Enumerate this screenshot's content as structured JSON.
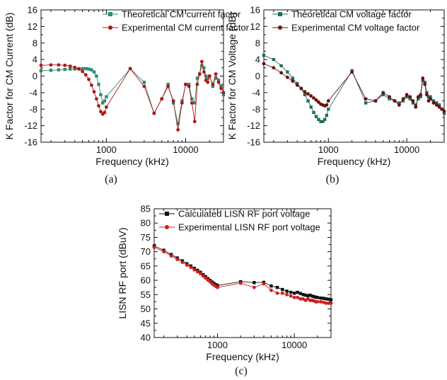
{
  "chart_data": [
    {
      "type": "line",
      "caption": "(a)",
      "xlabel": "Frequency (kHz)",
      "ylabel": "K Factor for CM Current (dB)",
      "xscale": "log",
      "xlim": [
        150,
        30000
      ],
      "ylim": [
        -16,
        16
      ],
      "xticks": [
        1000,
        10000
      ],
      "xtick_labels": [
        "1000",
        "10000"
      ],
      "yticks": [
        -16,
        -12,
        -8,
        -4,
        0,
        4,
        8,
        12,
        16
      ],
      "ytick_labels": [
        "-16",
        "-12",
        "-8",
        "-4",
        "0",
        "4",
        "8",
        "12",
        "16"
      ],
      "grid": false,
      "legend_position": "top-right",
      "series": [
        {
          "name": "Theoretical CM current factor",
          "color": "#2e8b6e",
          "marker": "square",
          "x": [
            150,
            200,
            250,
            300,
            350,
            400,
            450,
            500,
            550,
            600,
            650,
            700,
            750,
            800,
            850,
            900,
            950,
            1000,
            2000,
            3000,
            4000,
            5000,
            6000,
            7000,
            8000,
            9000,
            10000,
            11000,
            12000,
            13000,
            14000,
            15000,
            16000,
            17000,
            18000,
            19000,
            20000,
            22000,
            24000,
            26000,
            28000,
            30000
          ],
          "y": [
            1.3,
            1.4,
            1.5,
            1.6,
            1.7,
            1.7,
            1.8,
            1.8,
            1.8,
            1.7,
            1.5,
            1.0,
            0.0,
            -2.0,
            -4.5,
            -6.5,
            -6.0,
            -5.0,
            1.8,
            -1.5,
            -9.0,
            -5.5,
            -2.0,
            -6.5,
            -11.5,
            -6.0,
            -2.0,
            -2.0,
            -5.5,
            -6.5,
            -0.5,
            0.5,
            2.5,
            2.0,
            0.0,
            -0.5,
            0.0,
            -2.5,
            -0.5,
            -1.0,
            -2.5,
            -4.5
          ]
        },
        {
          "name": "Experimental CM current factor",
          "color": "#b01515",
          "marker": "circle",
          "x": [
            150,
            200,
            250,
            300,
            350,
            400,
            450,
            500,
            550,
            600,
            650,
            700,
            750,
            800,
            850,
            900,
            950,
            1000,
            2000,
            3000,
            4000,
            5000,
            6000,
            7000,
            8000,
            9000,
            10000,
            11000,
            12000,
            13000,
            14000,
            15000,
            16000,
            17000,
            18000,
            19000,
            20000,
            22000,
            24000,
            26000,
            28000,
            30000
          ],
          "y": [
            2.6,
            2.7,
            2.7,
            2.6,
            2.4,
            2.1,
            1.7,
            1.1,
            0.3,
            -0.8,
            -2.2,
            -3.8,
            -5.5,
            -7.2,
            -8.6,
            -9.2,
            -8.8,
            -7.5,
            1.8,
            -2.5,
            -9.0,
            -5.5,
            -2.5,
            -6.0,
            -13.0,
            -6.5,
            -2.0,
            -2.5,
            -6.5,
            -11.0,
            -2.0,
            0.5,
            3.5,
            1.0,
            -1.0,
            -1.5,
            0.0,
            -2.0,
            0.5,
            -1.5,
            -3.0,
            -4.0
          ]
        }
      ]
    },
    {
      "type": "line",
      "caption": "(b)",
      "xlabel": "Frequency (kHz)",
      "ylabel": "K Factor for CM Voltage (dB)",
      "xscale": "log",
      "xlim": [
        150,
        30000
      ],
      "ylim": [
        -16,
        16
      ],
      "xticks": [
        1000,
        10000
      ],
      "xtick_labels": [
        "1000",
        "10000"
      ],
      "yticks": [
        -16,
        -12,
        -8,
        -4,
        0,
        4,
        8,
        12,
        16
      ],
      "ytick_labels": [
        "-16",
        "-12",
        "-8",
        "-4",
        "0",
        "4",
        "8",
        "12",
        "16"
      ],
      "grid": false,
      "legend_position": "top-right",
      "series": [
        {
          "name": "Theoretical CM voltage factor",
          "color": "#1f6f5c",
          "marker": "square",
          "x": [
            150,
            200,
            250,
            300,
            350,
            400,
            450,
            500,
            550,
            600,
            650,
            700,
            750,
            800,
            850,
            900,
            950,
            1000,
            2000,
            3000,
            4000,
            5000,
            6000,
            7000,
            8000,
            9000,
            10000,
            11000,
            12000,
            13000,
            14000,
            15000,
            16000,
            17000,
            18000,
            19000,
            20000,
            22000,
            24000,
            26000,
            28000,
            30000
          ],
          "y": [
            5.0,
            4.0,
            2.5,
            1.0,
            -0.5,
            -1.8,
            -3.0,
            -4.5,
            -6.0,
            -7.5,
            -8.8,
            -9.8,
            -10.5,
            -11.0,
            -11.0,
            -10.5,
            -9.5,
            -8.0,
            1.3,
            -6.5,
            -6.0,
            -4.5,
            -5.5,
            -6.0,
            -6.5,
            -6.0,
            -5.0,
            -5.5,
            -6.5,
            -7.0,
            -5.5,
            -5.0,
            -1.0,
            -1.5,
            -4.0,
            -5.0,
            -5.0,
            -6.0,
            -6.5,
            -7.0,
            -8.0,
            -9.0
          ]
        },
        {
          "name": "Experimental CM voltage factor",
          "color": "#6b1010",
          "marker": "circle",
          "x": [
            150,
            200,
            250,
            300,
            350,
            400,
            450,
            500,
            550,
            600,
            650,
            700,
            750,
            800,
            850,
            900,
            950,
            1000,
            2000,
            3000,
            4000,
            5000,
            6000,
            7000,
            8000,
            9000,
            10000,
            11000,
            12000,
            13000,
            14000,
            15000,
            16000,
            17000,
            18000,
            19000,
            20000,
            22000,
            24000,
            26000,
            28000,
            30000
          ],
          "y": [
            3.0,
            2.0,
            0.8,
            -0.3,
            -1.2,
            -2.2,
            -3.0,
            -3.8,
            -4.3,
            -4.8,
            -5.3,
            -5.8,
            -6.3,
            -6.8,
            -7.0,
            -7.2,
            -7.0,
            -6.0,
            1.0,
            -5.5,
            -6.0,
            -4.0,
            -5.0,
            -6.0,
            -7.0,
            -5.5,
            -4.5,
            -5.0,
            -6.0,
            -7.5,
            -5.0,
            -4.5,
            -0.5,
            -2.0,
            -4.5,
            -6.0,
            -5.5,
            -6.5,
            -7.0,
            -7.5,
            -8.0,
            -8.5
          ]
        }
      ]
    },
    {
      "type": "line",
      "caption": "(c)",
      "xlabel": "Frequency (kHz)",
      "ylabel": "LISN RF port (dBuV)",
      "xscale": "log",
      "xlim": [
        150,
        30000
      ],
      "ylim": [
        40,
        85
      ],
      "xticks": [
        1000,
        10000
      ],
      "xtick_labels": [
        "1000",
        "10000"
      ],
      "yticks": [
        40,
        45,
        50,
        55,
        60,
        65,
        70,
        75,
        80,
        85
      ],
      "ytick_labels": [
        "40",
        "45",
        "50",
        "55",
        "60",
        "65",
        "70",
        "75",
        "80",
        "85"
      ],
      "grid": false,
      "legend_position": "top-right",
      "series": [
        {
          "name": "Calculated LISN RF port voltage",
          "color": "#111111",
          "marker": "square",
          "x": [
            150,
            200,
            250,
            300,
            350,
            400,
            450,
            500,
            550,
            600,
            650,
            700,
            750,
            800,
            850,
            900,
            950,
            1000,
            2000,
            3000,
            4000,
            5000,
            6000,
            7000,
            8000,
            9000,
            10000,
            11000,
            12000,
            13000,
            14000,
            15000,
            16000,
            17000,
            18000,
            19000,
            20000,
            22000,
            24000,
            26000,
            28000,
            30000
          ],
          "y": [
            72.0,
            70.5,
            69.0,
            67.8,
            66.8,
            65.8,
            65.0,
            64.2,
            63.5,
            62.8,
            62.0,
            61.3,
            60.6,
            60.0,
            59.4,
            58.9,
            58.5,
            58.2,
            59.5,
            59.2,
            59.3,
            58.0,
            57.5,
            56.8,
            56.2,
            55.8,
            55.5,
            55.8,
            55.4,
            55.0,
            54.8,
            54.6,
            54.8,
            54.5,
            54.3,
            54.1,
            54.0,
            53.8,
            53.7,
            53.5,
            53.4,
            53.2
          ]
        },
        {
          "name": "Experimental LISN RF port voltage",
          "color": "#d01c1c",
          "marker": "circle",
          "x": [
            150,
            200,
            250,
            300,
            350,
            400,
            450,
            500,
            550,
            600,
            650,
            700,
            750,
            800,
            850,
            900,
            950,
            1000,
            2000,
            3000,
            4000,
            5000,
            6000,
            7000,
            8000,
            9000,
            10000,
            11000,
            12000,
            13000,
            14000,
            15000,
            16000,
            17000,
            18000,
            19000,
            20000,
            22000,
            24000,
            26000,
            28000,
            30000
          ],
          "y": [
            71.5,
            70.0,
            68.5,
            67.3,
            66.3,
            65.3,
            64.5,
            63.7,
            63.0,
            62.3,
            61.5,
            60.8,
            60.1,
            59.5,
            58.8,
            58.3,
            57.9,
            57.5,
            59.0,
            57.5,
            58.8,
            56.5,
            55.5,
            55.5,
            55.0,
            54.5,
            54.0,
            54.0,
            53.5,
            53.5,
            53.0,
            53.5,
            53.0,
            53.0,
            52.8,
            52.5,
            52.5,
            52.5,
            52.3,
            52.0,
            52.0,
            52.0
          ]
        }
      ]
    }
  ]
}
